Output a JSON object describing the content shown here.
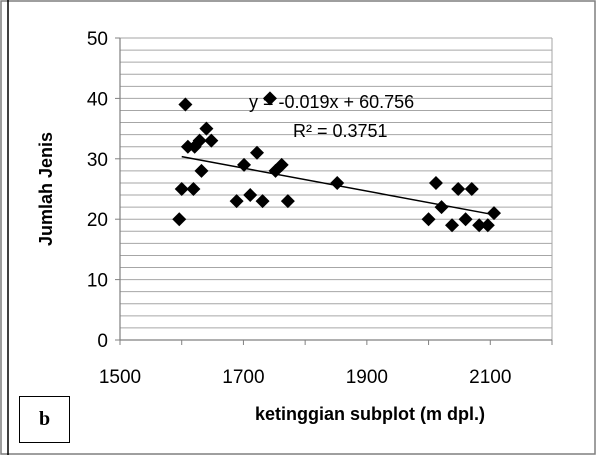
{
  "panel_label": "b",
  "chart_data": {
    "type": "scatter",
    "xlabel": "ketinggian subplot (m dpl.)",
    "ylabel": "Jumlah Jenis",
    "xlim": [
      1500,
      2200
    ],
    "ylim": [
      0,
      50
    ],
    "x_ticks": [
      1500,
      1700,
      1900,
      2100
    ],
    "y_ticks": [
      0,
      10,
      20,
      30,
      40,
      50
    ],
    "grid": "horizontal",
    "minor_y_step": 2,
    "marker": "diamond",
    "marker_color": "#000000",
    "trendline": {
      "type": "linear",
      "slope": -0.019,
      "intercept": 60.756,
      "x_range": [
        1600,
        2110
      ],
      "equation_label": "y = -0.019x + 60.756",
      "r2_label": "R² = 0.3751"
    },
    "points": [
      {
        "x": 1596,
        "y": 20
      },
      {
        "x": 1600,
        "y": 25
      },
      {
        "x": 1606,
        "y": 39
      },
      {
        "x": 1610,
        "y": 32
      },
      {
        "x": 1619,
        "y": 25
      },
      {
        "x": 1621,
        "y": 32
      },
      {
        "x": 1629,
        "y": 33
      },
      {
        "x": 1632,
        "y": 28
      },
      {
        "x": 1640,
        "y": 35
      },
      {
        "x": 1648,
        "y": 33
      },
      {
        "x": 1689,
        "y": 23
      },
      {
        "x": 1701,
        "y": 29
      },
      {
        "x": 1711,
        "y": 24
      },
      {
        "x": 1722,
        "y": 31
      },
      {
        "x": 1731,
        "y": 23
      },
      {
        "x": 1743,
        "y": 40
      },
      {
        "x": 1752,
        "y": 28
      },
      {
        "x": 1762,
        "y": 29
      },
      {
        "x": 1772,
        "y": 23
      },
      {
        "x": 1852,
        "y": 26
      },
      {
        "x": 2000,
        "y": 20
      },
      {
        "x": 2012,
        "y": 26
      },
      {
        "x": 2021,
        "y": 22
      },
      {
        "x": 2038,
        "y": 19
      },
      {
        "x": 2048,
        "y": 25
      },
      {
        "x": 2060,
        "y": 20
      },
      {
        "x": 2070,
        "y": 25
      },
      {
        "x": 2082,
        "y": 19
      },
      {
        "x": 2096,
        "y": 19
      },
      {
        "x": 2106,
        "y": 21
      }
    ]
  }
}
